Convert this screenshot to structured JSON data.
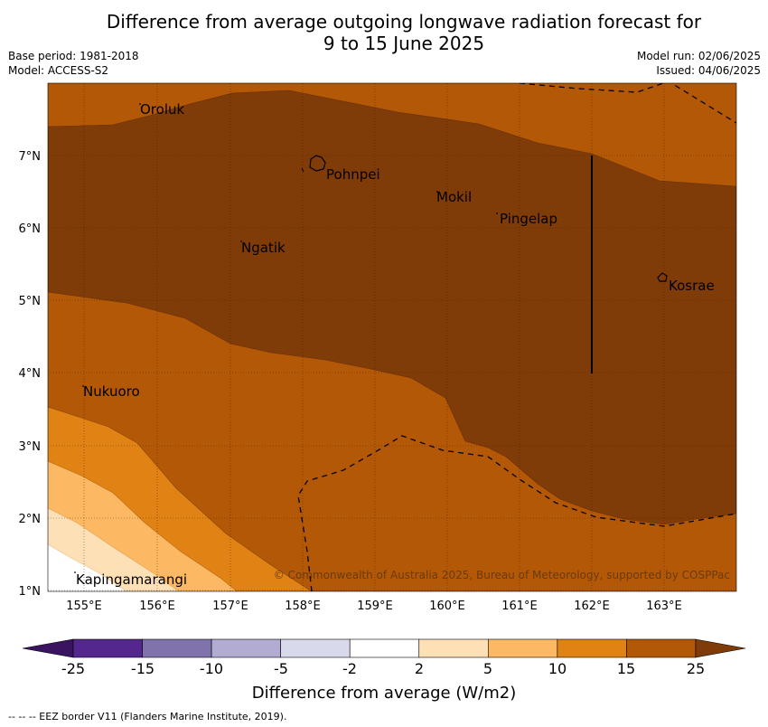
{
  "title_line1": "Difference from average outgoing longwave radiation forecast for",
  "title_line2": "9 to 15 June 2025",
  "base_period": "Base period: 1981-2018",
  "model": "Model: ACCESS-S2",
  "model_run": "Model run: 02/06/2025",
  "issued": "Issued: 04/06/2025",
  "copyright": "© Commonwealth of Australia 2025, Bureau of Meteorology, supported by COSPPac",
  "places": {
    "oroluk": "Oroluk",
    "pohnpei": "Pohnpei",
    "mokil": "Mokil",
    "pingelap": "Pingelap",
    "ngatik": "Ngatik",
    "kosrae": "Kosrae",
    "nukuoro": "Nukuoro",
    "kapingamarangi": "Kapingamarangi"
  },
  "lat_labels": [
    "7°N",
    "6°N",
    "5°N",
    "4°N",
    "3°N",
    "2°N",
    "1°N"
  ],
  "lon_labels": [
    "155°E",
    "156°E",
    "157°E",
    "158°E",
    "159°E",
    "160°E",
    "161°E",
    "162°E",
    "163°E"
  ],
  "colorbar": {
    "title": "Difference from average (W/m2)",
    "tick_labels": [
      "-25",
      "-15",
      "-10",
      "-5",
      "-2",
      "2",
      "5",
      "10",
      "15",
      "25"
    ],
    "colors": [
      "#3a1460",
      "#54278f",
      "#8073ac",
      "#b2abd2",
      "#d8daeb",
      "#ffffff",
      "#fee0b6",
      "#fdb863",
      "#e08214",
      "#b35806",
      "#7f3b08"
    ]
  },
  "footer": "--  --  -- EEZ border V11 (Flanders Marine Institute, 2019)."
}
